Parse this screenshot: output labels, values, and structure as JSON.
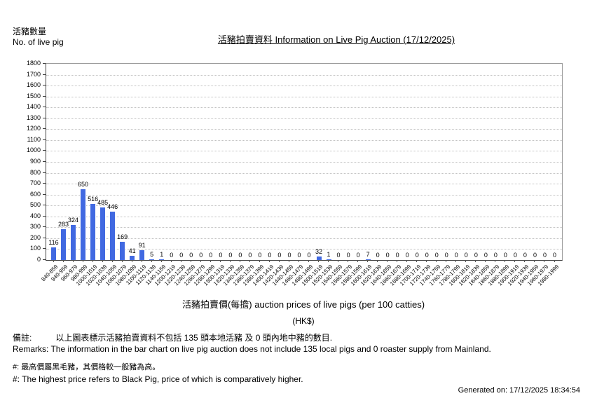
{
  "page": {
    "y_axis_unit_zh": "活豬數量",
    "y_axis_unit_en": "No. of live pig",
    "title": "活豬拍賣資料 Information on Live Pig Auction (17/12/2025)",
    "x_axis_title": "活豬拍賣價(每擔) auction prices of live pigs (per 100 catties)",
    "x_axis_currency": "(HK$)",
    "remarks_zh_label": "備註:",
    "remarks_zh_text": "以上圖表標示活豬拍賣資料不包括 135 頭本地活豬 及 0 頭內地中豬的數目.",
    "remarks_en": "Remarks: The information in the bar chart on live pig auction does not include 135 local pigs and 0 roaster supply from Mainland.",
    "note_zh": "#: 最高價屬黑毛豬，其價格較一般豬為高。",
    "note_en": "#: The highest price refers to Black Pig, price of which is comparatively higher.",
    "generated": "Generated on: 17/12/2025 18:34:54"
  },
  "chart_data": {
    "type": "bar",
    "title": "活豬拍賣資料 Information on Live Pig Auction (17/12/2025)",
    "xlabel": "活豬拍賣價(每擔) auction prices of live pigs (per 100 catties) (HK$)",
    "ylabel": "活豬數量 No. of live pig",
    "ylim": [
      0,
      1800
    ],
    "y_tick_step": 100,
    "grid": "horizontal-dotted",
    "gridline_color": "#c2c2c2",
    "bar_color": "#4169E1",
    "legend": "none",
    "value_labels_shown": true,
    "categories": [
      "840-859",
      "940-959",
      "960-979",
      "980-999",
      "1000-1019",
      "1020-1039",
      "1040-1059",
      "1060-1079",
      "1080-1099",
      "1100-1119",
      "1120-1139",
      "1140-1159",
      "1200-1219",
      "1220-1239",
      "1240-1259",
      "1260-1279",
      "1280-1299",
      "1300-1319",
      "1320-1339",
      "1340-1359",
      "1360-1379",
      "1380-1399",
      "1400-1419",
      "1420-1439",
      "1440-1459",
      "1460-1479",
      "1480-1499",
      "1500-1519",
      "1520-1539",
      "1540-1559",
      "1560-1579",
      "1580-1599",
      "1600-1619",
      "1620-1639",
      "1640-1659",
      "1660-1679",
      "1680-1699",
      "1700-1719",
      "1720-1739",
      "1740-1759",
      "1760-1779",
      "1780-1799",
      "1800-1819",
      "1820-1839",
      "1840-1859",
      "1860-1879",
      "1880-1899",
      "1900-1919",
      "1920-1939",
      "1940-1959",
      "1960-1979",
      "1980-1999"
    ],
    "values": [
      116,
      283,
      324,
      650,
      516,
      485,
      446,
      169,
      41,
      91,
      5,
      1,
      0,
      0,
      0,
      0,
      0,
      0,
      0,
      0,
      0,
      0,
      0,
      0,
      0,
      0,
      0,
      32,
      1,
      0,
      0,
      0,
      7,
      0,
      0,
      0,
      0,
      0,
      0,
      0,
      0,
      0,
      0,
      0,
      0,
      0,
      0,
      0,
      0,
      0,
      0,
      0
    ]
  }
}
